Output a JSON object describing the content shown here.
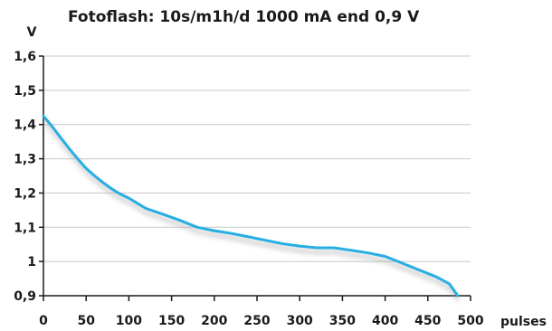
{
  "chart_data": {
    "type": "line",
    "title": "Fotoflash: 10s/m1h/d 1000 mA end 0,9 V",
    "ylabel": "V",
    "xlabel": "pulses",
    "xlim": [
      0,
      500
    ],
    "ylim": [
      0.9,
      1.6
    ],
    "x_ticks": [
      0,
      50,
      100,
      150,
      200,
      250,
      300,
      350,
      400,
      450,
      500
    ],
    "x_tick_labels": [
      "0",
      "50",
      "100",
      "150",
      "200",
      "250",
      "300",
      "350",
      "400",
      "450",
      "500"
    ],
    "y_ticks": [
      0.9,
      1.0,
      1.1,
      1.2,
      1.3,
      1.4,
      1.5,
      1.6
    ],
    "y_tick_labels": [
      "0,9",
      "1",
      "1,1",
      "1,2",
      "1,3",
      "1,4",
      "1,5",
      "1,6"
    ],
    "grid": true,
    "line_color": "#27aee3",
    "series": [
      {
        "x": [
          0,
          10,
          20,
          30,
          40,
          50,
          60,
          70,
          80,
          90,
          100,
          110,
          120,
          140,
          160,
          180,
          200,
          220,
          240,
          260,
          280,
          300,
          320,
          340,
          360,
          380,
          400,
          420,
          440,
          460,
          475,
          485
        ],
        "y": [
          1.425,
          1.395,
          1.362,
          1.33,
          1.3,
          1.272,
          1.25,
          1.23,
          1.212,
          1.197,
          1.185,
          1.17,
          1.155,
          1.138,
          1.12,
          1.1,
          1.09,
          1.082,
          1.072,
          1.062,
          1.052,
          1.045,
          1.04,
          1.04,
          1.033,
          1.025,
          1.015,
          0.995,
          0.975,
          0.955,
          0.935,
          0.9
        ]
      }
    ]
  }
}
